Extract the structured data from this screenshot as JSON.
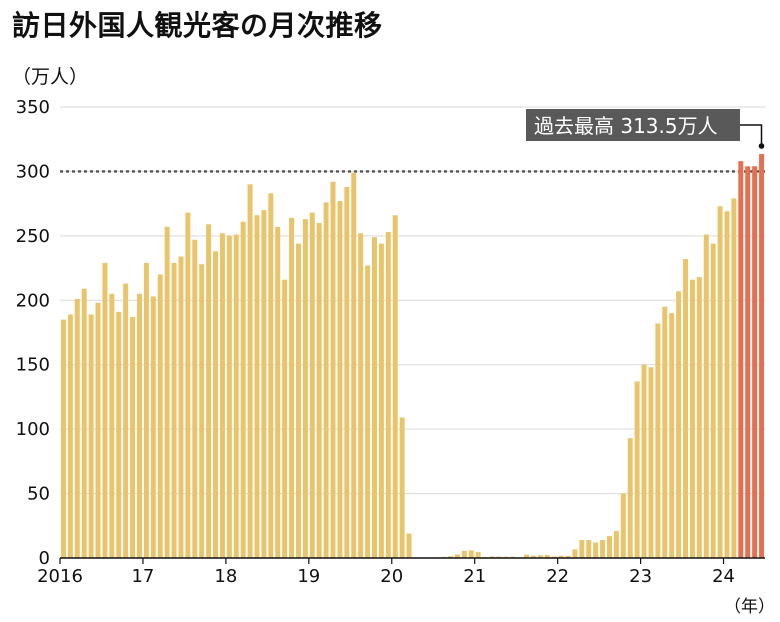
{
  "title": "訪日外国人観光客の月次推移",
  "y_unit": "（万人）",
  "x_unit": "（年）",
  "callout": "過去最高 313.5万人",
  "colors": {
    "bar": "#E9C46A",
    "highlight": "#E76F51",
    "reference": "#555555",
    "grid": "#d9d9d9",
    "callout_bg": "#595959"
  },
  "chart_data": {
    "type": "bar",
    "title": "訪日外国人観光客の月次推移",
    "ylabel": "（万人）",
    "xlabel": "（年）",
    "ylim": [
      0,
      350
    ],
    "yticks": [
      0,
      50,
      100,
      150,
      200,
      250,
      300,
      350
    ],
    "grid": true,
    "reference_line": 300,
    "x_tick_labels": [
      {
        "label": "2016",
        "month_index": 0
      },
      {
        "label": "17",
        "month_index": 12
      },
      {
        "label": "18",
        "month_index": 24
      },
      {
        "label": "19",
        "month_index": 36
      },
      {
        "label": "20",
        "month_index": 48
      },
      {
        "label": "21",
        "month_index": 60
      },
      {
        "label": "22",
        "month_index": 72
      },
      {
        "label": "23",
        "month_index": 84
      },
      {
        "label": "24",
        "month_index": 96
      }
    ],
    "highlight_from_index": 98,
    "values": [
      185,
      189,
      201,
      209,
      189,
      198,
      229,
      205,
      191,
      213,
      187,
      205,
      229,
      203,
      220,
      257,
      229,
      234,
      268,
      247,
      228,
      259,
      238,
      252,
      250,
      251,
      261,
      290,
      266,
      270,
      283,
      257,
      216,
      264,
      244,
      263,
      268,
      260,
      276,
      292,
      277,
      288,
      299,
      252,
      227,
      249,
      244,
      253,
      266,
      109,
      19,
      0.3,
      0.2,
      0.3,
      0.4,
      0.9,
      1.4,
      2.8,
      5.6,
      5.9,
      4.6,
      0.7,
      1.2,
      1.1,
      1.0,
      1.0,
      0.5,
      2.6,
      1.8,
      2.1,
      2.3,
      1.2,
      1.8,
      1.7,
      6.7,
      14,
      14,
      12,
      14,
      17,
      21,
      50,
      93,
      137,
      150,
      148,
      182,
      195,
      190,
      207,
      232,
      216,
      218,
      251,
      244,
      273,
      269,
      279,
      308,
      304,
      304,
      313.5
    ]
  }
}
